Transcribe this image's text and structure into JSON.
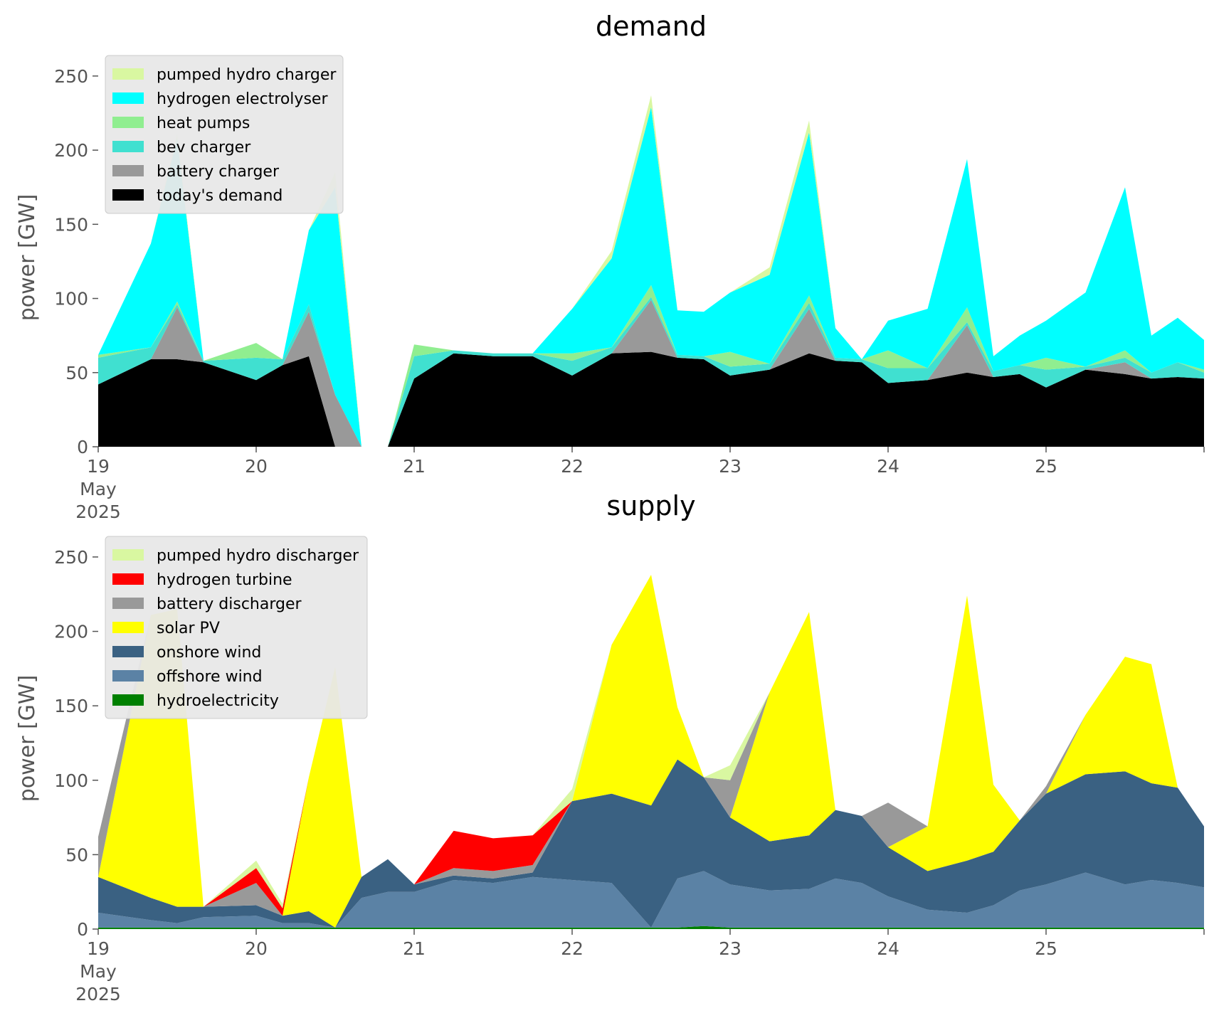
{
  "figure": {
    "background": "#ffffff",
    "plot_background": "#ffffff"
  },
  "chart_data": [
    {
      "type": "area",
      "stacked": true,
      "title": "demand",
      "ylabel": "power [GW]",
      "xlabel": "",
      "ylim": [
        0,
        260
      ],
      "yticks": [
        "0",
        "50",
        "100",
        "150",
        "200",
        "250"
      ],
      "xlim": [
        "2025-05-19 00:00",
        "2025-05-26 00:00"
      ],
      "xtick_labels": [
        "19\nMay\n2025",
        "20",
        "21",
        "22",
        "23",
        "24",
        "25"
      ],
      "grid": false,
      "legend": "top-left",
      "legend_order": [
        "pumped hydro charger",
        "hydrogen electrolyser",
        "heat pumps",
        "bev charger",
        "battery charger",
        "today's demand"
      ],
      "x_times": [
        "2025-05-19 00:00",
        "2025-05-19 08:00",
        "2025-05-19 12:00",
        "2025-05-19 16:00",
        "2025-05-20 00:00",
        "2025-05-20 04:00",
        "2025-05-20 08:00",
        "2025-05-20 12:00",
        "2025-05-20 16:00",
        "2025-05-20 20:00",
        "2025-05-21 00:00",
        "2025-05-21 06:00",
        "2025-05-21 12:00",
        "2025-05-21 18:00",
        "2025-05-22 00:00",
        "2025-05-22 06:00",
        "2025-05-22 12:00",
        "2025-05-22 16:00",
        "2025-05-22 20:00",
        "2025-05-23 00:00",
        "2025-05-23 06:00",
        "2025-05-23 12:00",
        "2025-05-23 16:00",
        "2025-05-23 20:00",
        "2025-05-24 00:00",
        "2025-05-24 06:00",
        "2025-05-24 12:00",
        "2025-05-24 16:00",
        "2025-05-24 20:00",
        "2025-05-25 00:00",
        "2025-05-25 06:00",
        "2025-05-25 12:00",
        "2025-05-25 16:00",
        "2025-05-25 20:00",
        "2025-05-26 00:00"
      ],
      "series": [
        {
          "name": "today's demand",
          "color": "#000000",
          "values": [
            42,
            59,
            59,
            57,
            45,
            55,
            61,
            0,
            0,
            0,
            46,
            63,
            61,
            61,
            48,
            63,
            64,
            60,
            59,
            48,
            52,
            63,
            58,
            57,
            43,
            45,
            50,
            47,
            49,
            40,
            52,
            49,
            46,
            47,
            46
          ]
        },
        {
          "name": "battery charger",
          "color": "#999999",
          "values": [
            0,
            0,
            35,
            0,
            0,
            0,
            30,
            35,
            0,
            0,
            0,
            0,
            0,
            0,
            0,
            0,
            35,
            0,
            0,
            0,
            0,
            30,
            0,
            0,
            0,
            0,
            32,
            0,
            0,
            0,
            0,
            8,
            0,
            0,
            0
          ]
        },
        {
          "name": "bev charger",
          "color": "#40e0d0",
          "values": [
            18,
            8,
            2,
            1,
            15,
            4,
            5,
            0,
            0,
            0,
            15,
            2,
            2,
            2,
            10,
            4,
            2,
            2,
            2,
            6,
            4,
            4,
            2,
            2,
            10,
            8,
            2,
            4,
            6,
            12,
            2,
            3,
            4,
            10,
            4
          ]
        },
        {
          "name": "heat pumps",
          "color": "#90ee90",
          "values": [
            2,
            0,
            2,
            0,
            10,
            0,
            0,
            0,
            0,
            0,
            8,
            0,
            0,
            0,
            5,
            0,
            8,
            0,
            0,
            10,
            0,
            5,
            0,
            0,
            12,
            0,
            10,
            0,
            0,
            8,
            0,
            5,
            0,
            0,
            2
          ]
        },
        {
          "name": "hydrogen electrolyser",
          "color": "#00ffff",
          "values": [
            0,
            70,
            110,
            0,
            0,
            0,
            50,
            140,
            0,
            0,
            0,
            0,
            0,
            0,
            30,
            60,
            120,
            30,
            30,
            40,
            60,
            110,
            20,
            0,
            20,
            40,
            100,
            10,
            20,
            25,
            50,
            110,
            25,
            30,
            20
          ]
        },
        {
          "name": "pumped hydro charger",
          "color": "#d9f7a1",
          "values": [
            0,
            0,
            3,
            0,
            0,
            0,
            0,
            10,
            0,
            0,
            0,
            0,
            0,
            0,
            0,
            5,
            8,
            0,
            0,
            0,
            5,
            8,
            0,
            0,
            0,
            0,
            0,
            0,
            0,
            0,
            0,
            0,
            0,
            0,
            0
          ]
        }
      ]
    },
    {
      "type": "area",
      "stacked": true,
      "title": "supply",
      "ylabel": "power [GW]",
      "xlabel": "",
      "ylim": [
        0,
        260
      ],
      "yticks": [
        "0",
        "50",
        "100",
        "150",
        "200",
        "250"
      ],
      "xlim": [
        "2025-05-19 00:00",
        "2025-05-26 00:00"
      ],
      "xtick_labels": [
        "19\nMay\n2025",
        "20",
        "21",
        "22",
        "23",
        "24",
        "25"
      ],
      "grid": false,
      "legend": "top-left",
      "legend_order": [
        "pumped hydro discharger",
        "hydrogen turbine",
        "battery discharger",
        "solar PV",
        "onshore wind",
        "offshore wind",
        "hydroelectricity"
      ],
      "x_times": [
        "2025-05-19 00:00",
        "2025-05-19 08:00",
        "2025-05-19 12:00",
        "2025-05-19 16:00",
        "2025-05-20 00:00",
        "2025-05-20 04:00",
        "2025-05-20 08:00",
        "2025-05-20 12:00",
        "2025-05-20 16:00",
        "2025-05-20 20:00",
        "2025-05-21 00:00",
        "2025-05-21 06:00",
        "2025-05-21 12:00",
        "2025-05-21 18:00",
        "2025-05-22 00:00",
        "2025-05-22 06:00",
        "2025-05-22 12:00",
        "2025-05-22 16:00",
        "2025-05-22 20:00",
        "2025-05-23 00:00",
        "2025-05-23 06:00",
        "2025-05-23 12:00",
        "2025-05-23 16:00",
        "2025-05-23 20:00",
        "2025-05-24 00:00",
        "2025-05-24 06:00",
        "2025-05-24 12:00",
        "2025-05-24 16:00",
        "2025-05-24 20:00",
        "2025-05-25 00:00",
        "2025-05-25 06:00",
        "2025-05-25 12:00",
        "2025-05-25 16:00",
        "2025-05-25 20:00",
        "2025-05-26 00:00"
      ],
      "series": [
        {
          "name": "hydroelectricity",
          "color": "#008000",
          "values": [
            1,
            1,
            1,
            1,
            1,
            1,
            1,
            1,
            1,
            1,
            1,
            1,
            1,
            1,
            1,
            1,
            1,
            1,
            2,
            1,
            1,
            1,
            1,
            1,
            1,
            1,
            1,
            1,
            1,
            1,
            1,
            1,
            1,
            1,
            1
          ]
        },
        {
          "name": "offshore wind",
          "color": "#5b82a5",
          "values": [
            10,
            5,
            3,
            7,
            8,
            3,
            3,
            0,
            20,
            24,
            24,
            32,
            30,
            34,
            32,
            30,
            0,
            33,
            37,
            29,
            25,
            26,
            33,
            30,
            21,
            12,
            10,
            15,
            25,
            29,
            37,
            29,
            32,
            30,
            27
          ]
        },
        {
          "name": "onshore wind",
          "color": "#3a6182",
          "values": [
            24,
            15,
            11,
            7,
            7,
            5,
            8,
            0,
            14,
            22,
            5,
            3,
            3,
            3,
            53,
            60,
            82,
            80,
            63,
            45,
            33,
            36,
            46,
            45,
            33,
            26,
            35,
            36,
            47,
            61,
            66,
            76,
            65,
            64,
            41
          ]
        },
        {
          "name": "solar PV",
          "color": "#ffff00",
          "values": [
            0,
            190,
            200,
            0,
            0,
            0,
            90,
            175,
            0,
            0,
            0,
            0,
            0,
            0,
            0,
            100,
            155,
            35,
            0,
            0,
            100,
            150,
            0,
            0,
            0,
            30,
            178,
            45,
            0,
            0,
            40,
            77,
            80,
            0,
            0
          ]
        },
        {
          "name": "battery discharger",
          "color": "#999999",
          "values": [
            27,
            0,
            0,
            0,
            15,
            0,
            0,
            0,
            0,
            0,
            0,
            5,
            5,
            5,
            0,
            0,
            0,
            0,
            0,
            25,
            0,
            0,
            0,
            0,
            30,
            0,
            0,
            0,
            0,
            5,
            0,
            0,
            0,
            0,
            0
          ]
        },
        {
          "name": "hydrogen turbine",
          "color": "#ff0000",
          "values": [
            0,
            0,
            0,
            0,
            10,
            5,
            0,
            0,
            0,
            0,
            0,
            25,
            22,
            20,
            0,
            0,
            0,
            0,
            0,
            0,
            0,
            0,
            0,
            0,
            0,
            0,
            0,
            0,
            0,
            0,
            0,
            0,
            0,
            0,
            0
          ]
        },
        {
          "name": "pumped hydro discharger",
          "color": "#d9f7a1",
          "values": [
            0,
            0,
            0,
            0,
            5,
            3,
            0,
            0,
            0,
            0,
            0,
            0,
            0,
            0,
            8,
            0,
            0,
            0,
            0,
            10,
            0,
            0,
            0,
            0,
            0,
            0,
            0,
            0,
            0,
            0,
            0,
            0,
            0,
            0,
            0
          ]
        }
      ]
    }
  ]
}
